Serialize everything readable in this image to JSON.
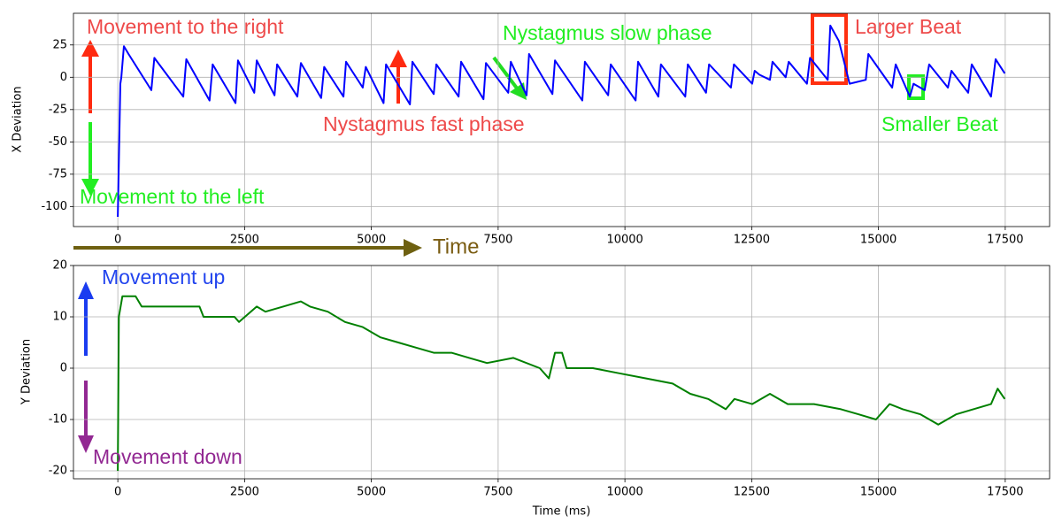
{
  "chart_data": [
    {
      "type": "line",
      "ylabel": "X Deviation",
      "x": [
        0,
        50,
        70,
        120,
        210,
        660,
        720,
        1290,
        1350,
        1810,
        1870,
        2320,
        2370,
        2690,
        2740,
        3090,
        3140,
        3540,
        3610,
        4010,
        4070,
        4450,
        4500,
        4830,
        4890,
        5240,
        5290,
        5760,
        5810,
        6230,
        6280,
        6720,
        6770,
        7210,
        7260,
        7700,
        7750,
        8060,
        8110,
        8570,
        8620,
        9160,
        9210,
        9670,
        9720,
        10210,
        10260,
        10660,
        10710,
        11190,
        11240,
        11600,
        11660,
        12090,
        12150,
        12510,
        12560,
        12650,
        12860,
        12910,
        13170,
        13230,
        13590,
        13650,
        14000,
        14050,
        14220,
        14430,
        14750,
        14800,
        15270,
        15340,
        15620,
        15690,
        15910,
        16000,
        16370,
        16440,
        16770,
        16840,
        17220,
        17310,
        17490
      ],
      "series": [
        {
          "color": "#0000ff",
          "values": [
            -108,
            -5,
            0,
            24,
            18,
            -10,
            15,
            -15,
            14,
            -18,
            10,
            -20,
            13,
            -12,
            13,
            -14,
            10,
            -15,
            11,
            -16,
            8,
            -15,
            12,
            -8,
            8,
            -20,
            10,
            -21,
            12,
            -13,
            10,
            -15,
            12,
            -17,
            11,
            -12,
            12,
            -14,
            18,
            -13,
            13,
            -18,
            12,
            -14,
            10,
            -18,
            12,
            -15,
            10,
            -15,
            10,
            -12,
            10,
            -8,
            10,
            -5,
            5,
            2,
            -2,
            12,
            0,
            12,
            -5,
            15,
            -2,
            40,
            28,
            -5,
            -2,
            18,
            -8,
            10,
            -15,
            -5,
            -10,
            10,
            -8,
            5,
            -12,
            10,
            -15,
            14,
            3
          ]
        }
      ],
      "xlim": [
        -875,
        18375
      ],
      "xticks": [
        0,
        2500,
        5000,
        7500,
        10000,
        12500,
        15000,
        17500
      ],
      "ylim": [
        -115.5,
        49.5
      ],
      "yticks": [
        -100,
        -75,
        -50,
        -25,
        0,
        25
      ],
      "grid": true,
      "annotations": [
        "Movement to the right",
        "Movement to the left",
        "Nystagmus fast phase",
        "Nystagmus slow phase",
        "Larger Beat",
        "Smaller Beat",
        "Time"
      ]
    },
    {
      "type": "line",
      "ylabel": "Y Deviation",
      "xlabel": "Time (ms)",
      "x": [
        0,
        20,
        90,
        350,
        470,
        1610,
        1690,
        2300,
        2390,
        2740,
        2910,
        3260,
        3610,
        3790,
        4140,
        4480,
        4830,
        5180,
        5530,
        5880,
        6230,
        6580,
        6930,
        7280,
        7800,
        8320,
        8500,
        8620,
        8760,
        8850,
        9370,
        9890,
        10420,
        10940,
        11290,
        11640,
        11990,
        12160,
        12510,
        12860,
        13210,
        13730,
        14260,
        14610,
        14950,
        15220,
        15480,
        15830,
        16180,
        16530,
        16870,
        17220,
        17350,
        17490
      ],
      "series": [
        {
          "color": "#008000",
          "values": [
            -20,
            10,
            14,
            14,
            12,
            12,
            10,
            10,
            9,
            12,
            11,
            12,
            13,
            12,
            11,
            9,
            8,
            6,
            5,
            4,
            3,
            3,
            2,
            1,
            2,
            0,
            -2,
            3,
            3,
            0,
            0,
            -1,
            -2,
            -3,
            -5,
            -6,
            -8,
            -6,
            -7,
            -5,
            -7,
            -7,
            -8,
            -9,
            -10,
            -7,
            -8,
            -9,
            -11,
            -9,
            -8,
            -7,
            -4,
            -6
          ]
        }
      ],
      "xlim": [
        -875,
        18375
      ],
      "xticks": [
        0,
        2500,
        5000,
        7500,
        10000,
        12500,
        15000,
        17500
      ],
      "ylim": [
        -21.55,
        20
      ],
      "yticks": [
        -20,
        -10,
        0,
        10,
        20
      ],
      "grid": true,
      "annotations": [
        "Movement up",
        "Movement down"
      ]
    }
  ]
}
